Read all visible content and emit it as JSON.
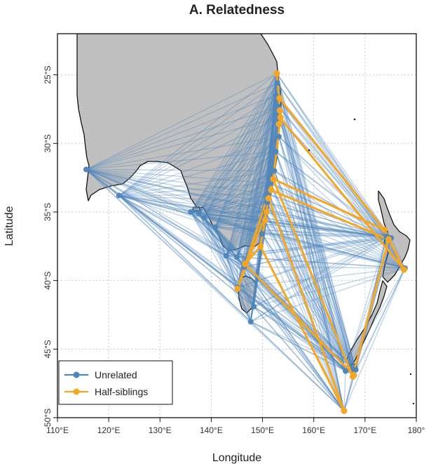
{
  "chart_data": {
    "type": "map",
    "title": "A. Relatedness",
    "xlabel": "Longitude",
    "ylabel": "Latitude",
    "xlim": [
      110,
      180
    ],
    "ylim": [
      -50,
      -22
    ],
    "x_ticks": [
      {
        "value": 110,
        "label": "110°E"
      },
      {
        "value": 120,
        "label": "120°E"
      },
      {
        "value": 130,
        "label": "130°E"
      },
      {
        "value": 140,
        "label": "140°E"
      },
      {
        "value": 150,
        "label": "150°E"
      },
      {
        "value": 160,
        "label": "160°E"
      },
      {
        "value": 170,
        "label": "170°E"
      },
      {
        "value": 180,
        "label": "180°"
      }
    ],
    "y_ticks": [
      {
        "value": -25,
        "label": "25°S"
      },
      {
        "value": -30,
        "label": "30°S"
      },
      {
        "value": -35,
        "label": "35°S"
      },
      {
        "value": -40,
        "label": "40°S"
      },
      {
        "value": -45,
        "label": "45°S"
      },
      {
        "value": -50,
        "label": "50°S"
      }
    ],
    "grid": true,
    "legend_position": "bottom-left",
    "series": [
      {
        "name": "Unrelated",
        "color": "#4f86bd"
      },
      {
        "name": "Half-siblings",
        "color": "#f5a623"
      }
    ],
    "land_color": "#c0c0c0",
    "sites_unrelated": [
      [
        152.8,
        -24.9
      ],
      [
        152.9,
        -25.6
      ],
      [
        152.6,
        -26.5
      ],
      [
        153.1,
        -27.3
      ],
      [
        153.3,
        -28.1
      ],
      [
        153.2,
        -29.5
      ],
      [
        152.6,
        -30.6
      ],
      [
        152.3,
        -32.0
      ],
      [
        151.6,
        -32.9
      ],
      [
        151.2,
        -33.7
      ],
      [
        150.9,
        -34.3
      ],
      [
        150.6,
        -35.0
      ],
      [
        150.3,
        -35.6
      ],
      [
        149.9,
        -36.6
      ],
      [
        115.6,
        -31.9
      ],
      [
        122.0,
        -33.8
      ],
      [
        136.0,
        -35.0
      ],
      [
        137.6,
        -35.1
      ],
      [
        138.6,
        -35.4
      ],
      [
        140.8,
        -36.1
      ],
      [
        142.9,
        -38.2
      ],
      [
        145.0,
        -38.3
      ],
      [
        146.4,
        -39.0
      ],
      [
        147.7,
        -43.0
      ],
      [
        145.1,
        -40.5
      ],
      [
        148.3,
        -41.9
      ],
      [
        174.2,
        -36.8
      ],
      [
        175.1,
        -36.9
      ],
      [
        177.8,
        -39.1
      ],
      [
        166.2,
        -46.6
      ],
      [
        167.9,
        -46.9
      ],
      [
        168.2,
        -46.5
      ],
      [
        165.9,
        -49.5
      ]
    ],
    "sites_halfsib": [
      [
        152.8,
        -24.9
      ],
      [
        153.3,
        -26.7
      ],
      [
        153.4,
        -27.6
      ],
      [
        153.5,
        -28.1
      ],
      [
        153.2,
        -28.6
      ],
      [
        152.1,
        -32.6
      ],
      [
        151.7,
        -33.4
      ],
      [
        151.2,
        -34.0
      ],
      [
        150.8,
        -35.0
      ],
      [
        150.5,
        -35.6
      ],
      [
        149.6,
        -37.5
      ],
      [
        145.1,
        -40.6
      ],
      [
        146.6,
        -38.8
      ],
      [
        173.8,
        -36.3
      ],
      [
        174.6,
        -37.0
      ],
      [
        177.6,
        -39.2
      ],
      [
        167.8,
        -46.9
      ],
      [
        167.6,
        -47.0
      ],
      [
        165.9,
        -49.5
      ]
    ],
    "links_halfsib": [
      [
        [
          153.3,
          -26.7
        ],
        [
          173.8,
          -36.3
        ]
      ],
      [
        [
          153.4,
          -28.1
        ],
        [
          177.6,
          -39.2
        ]
      ],
      [
        [
          152.1,
          -32.6
        ],
        [
          173.8,
          -36.3
        ]
      ],
      [
        [
          152.1,
          -32.6
        ],
        [
          167.6,
          -47.0
        ]
      ],
      [
        [
          152.1,
          -32.6
        ],
        [
          145.1,
          -40.6
        ]
      ],
      [
        [
          151.2,
          -34.0
        ],
        [
          165.9,
          -49.5
        ]
      ],
      [
        [
          149.6,
          -37.5
        ],
        [
          165.9,
          -49.5
        ]
      ],
      [
        [
          146.6,
          -38.8
        ],
        [
          167.8,
          -46.9
        ]
      ],
      [
        [
          152.8,
          -24.9
        ],
        [
          153.5,
          -28.1
        ]
      ],
      [
        [
          153.5,
          -28.1
        ],
        [
          152.1,
          -32.6
        ]
      ],
      [
        [
          152.1,
          -32.6
        ],
        [
          151.2,
          -34.0
        ]
      ],
      [
        [
          151.2,
          -34.0
        ],
        [
          149.6,
          -37.5
        ]
      ],
      [
        [
          149.6,
          -37.5
        ],
        [
          146.6,
          -38.8
        ]
      ],
      [
        [
          174.6,
          -37.0
        ],
        [
          167.6,
          -47.0
        ]
      ],
      [
        [
          177.6,
          -39.2
        ],
        [
          173.8,
          -36.3
        ]
      ],
      [
        [
          150.8,
          -35.0
        ],
        [
          145.1,
          -40.6
        ]
      ],
      [
        [
          151.7,
          -33.4
        ],
        [
          174.6,
          -37.0
        ]
      ]
    ]
  }
}
